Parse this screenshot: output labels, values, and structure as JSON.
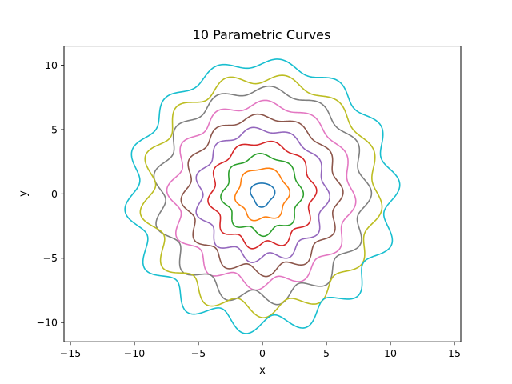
{
  "chart_data": {
    "type": "line",
    "title": "10 Parametric Curves",
    "xlabel": "x",
    "ylabel": "y",
    "xlim": [
      -15.5,
      15.5
    ],
    "ylim": [
      -11.5,
      11.5
    ],
    "xticks": [
      -15,
      -10,
      -5,
      0,
      5,
      10,
      15
    ],
    "yticks": [
      -10,
      -5,
      0,
      5,
      10
    ],
    "grid": false,
    "legend": "none",
    "series": [
      {
        "center": [
          0.0,
          0.0
        ],
        "radius": 0.9,
        "wobble": 0.1,
        "lobes": 3,
        "phase": 0.3,
        "color": "#1f77b4"
      },
      {
        "center": [
          0.0,
          0.0
        ],
        "radius": 2.0,
        "wobble": 0.15,
        "lobes": 6,
        "phase": 0.8,
        "color": "#ff7f0e"
      },
      {
        "center": [
          0.0,
          0.0
        ],
        "radius": 3.0,
        "wobble": 0.22,
        "lobes": 8,
        "phase": 1.2,
        "color": "#2ca02c"
      },
      {
        "center": [
          0.0,
          0.0
        ],
        "radius": 4.0,
        "wobble": 0.25,
        "lobes": 10,
        "phase": 0.5,
        "color": "#d62728"
      },
      {
        "center": [
          0.0,
          0.0
        ],
        "radius": 5.0,
        "wobble": 0.3,
        "lobes": 11,
        "phase": 1.7,
        "color": "#9467bd"
      },
      {
        "center": [
          0.0,
          0.0
        ],
        "radius": 6.0,
        "wobble": 0.32,
        "lobes": 12,
        "phase": 0.9,
        "color": "#8c564b"
      },
      {
        "center": [
          0.0,
          0.0
        ],
        "radius": 7.0,
        "wobble": 0.38,
        "lobes": 12,
        "phase": 2.3,
        "color": "#e377c2"
      },
      {
        "center": [
          0.0,
          0.0
        ],
        "radius": 8.1,
        "wobble": 0.45,
        "lobes": 13,
        "phase": 1.1,
        "color": "#7f7f7f"
      },
      {
        "center": [
          0.0,
          0.0
        ],
        "radius": 9.0,
        "wobble": 0.5,
        "lobes": 13,
        "phase": 2.8,
        "color": "#bcbd22"
      },
      {
        "center": [
          0.0,
          0.0
        ],
        "radius": 10.2,
        "wobble": 0.55,
        "lobes": 14,
        "phase": 0.2,
        "color": "#17becf"
      }
    ]
  }
}
